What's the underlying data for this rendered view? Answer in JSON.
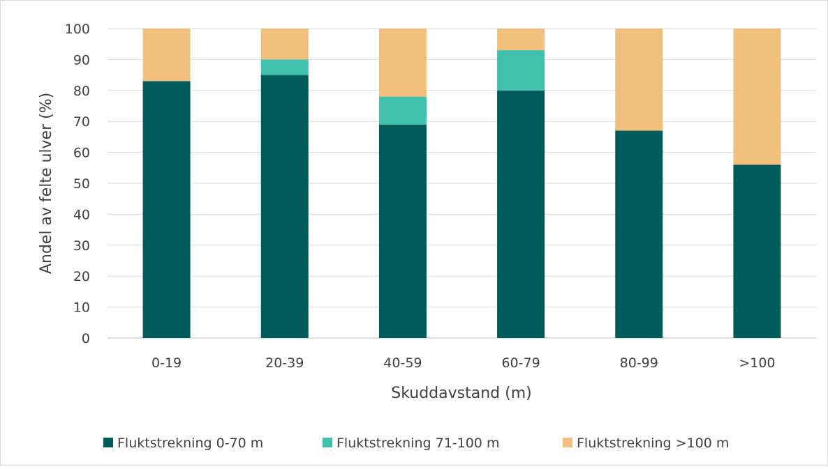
{
  "chart_data": {
    "type": "bar",
    "stacked": true,
    "title": "",
    "xlabel": "Skuddavstand (m)",
    "ylabel": "Andel av felte ulver  (%)",
    "ylim": [
      0,
      100
    ],
    "yticks": [
      "0",
      "10",
      "20",
      "30",
      "40",
      "50",
      "60",
      "70",
      "80",
      "90",
      "100"
    ],
    "categories": [
      "0-19",
      "20-39",
      "40-59",
      "60-79",
      "80-99",
      ">100"
    ],
    "series": [
      {
        "name": "Fluktstrekning 0-70 m",
        "color": "#005c5a",
        "values": [
          83,
          85,
          69,
          80,
          67,
          56
        ]
      },
      {
        "name": "Fluktstrekning 71-100 m",
        "color": "#40c1ac",
        "values": [
          0,
          5,
          9,
          13,
          0,
          0
        ]
      },
      {
        "name": "Fluktstrekning >100 m",
        "color": "#f0bf7e",
        "values": [
          17,
          10,
          22,
          7,
          33,
          44
        ]
      }
    ],
    "grid": true,
    "legend_position": "bottom"
  }
}
